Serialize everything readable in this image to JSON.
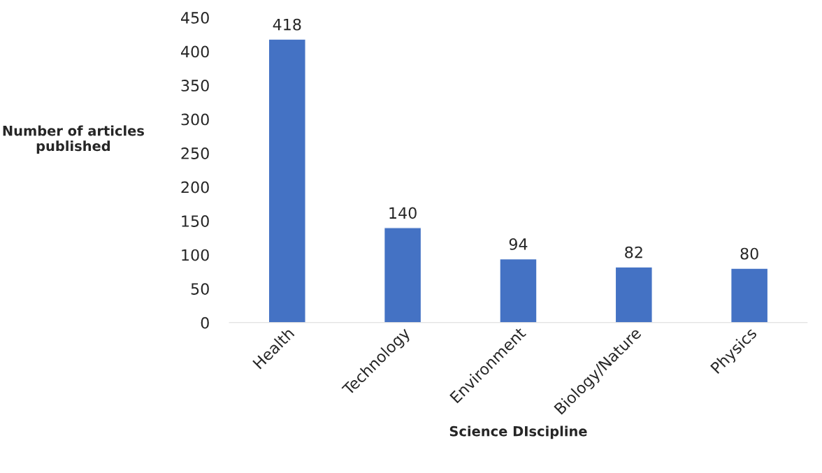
{
  "chart_data": {
    "type": "bar",
    "xlabel": "Science DIscipline",
    "ylabel": "Number of articles\npublished",
    "categories": [
      "Health",
      "Technology",
      "Environment",
      "Biology/Nature",
      "Physics"
    ],
    "values": [
      418,
      140,
      94,
      82,
      80
    ],
    "color": "#4472c4",
    "ylim": [
      0,
      450
    ],
    "yticks": [
      0,
      50,
      100,
      150,
      200,
      250,
      300,
      350,
      400,
      450
    ],
    "grid": false,
    "data_labels": true
  }
}
